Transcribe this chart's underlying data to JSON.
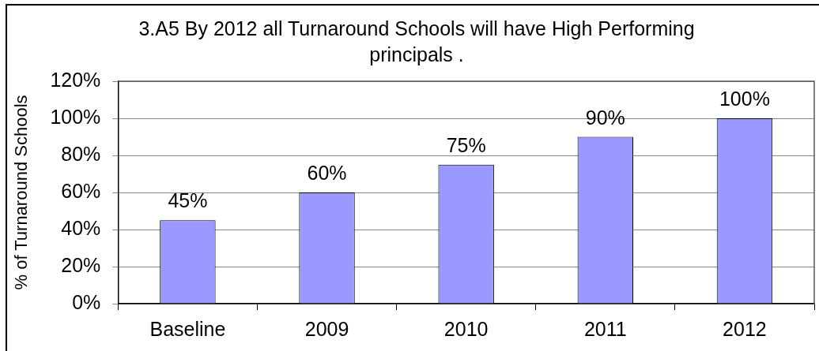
{
  "chart_data": {
    "type": "bar",
    "title": "3.A5 By 2012 all Turnaround Schools will have High Performing principals .",
    "ylabel": "% of Turnaround Schools",
    "categories": [
      "Baseline",
      "2009",
      "2010",
      "2011",
      "2012"
    ],
    "values": [
      45,
      60,
      75,
      90,
      100
    ],
    "value_labels": [
      "45%",
      "60%",
      "75%",
      "90%",
      "100%"
    ],
    "color": "#9999ff",
    "ylim": [
      0,
      120
    ],
    "yticks": [
      {
        "value": 0,
        "label": "0%"
      },
      {
        "value": 20,
        "label": "20%"
      },
      {
        "value": 40,
        "label": "40%"
      },
      {
        "value": 60,
        "label": "60%"
      },
      {
        "value": 80,
        "label": "80%"
      },
      {
        "value": 100,
        "label": "100%"
      },
      {
        "value": 120,
        "label": "120%"
      }
    ],
    "grid": "y"
  }
}
